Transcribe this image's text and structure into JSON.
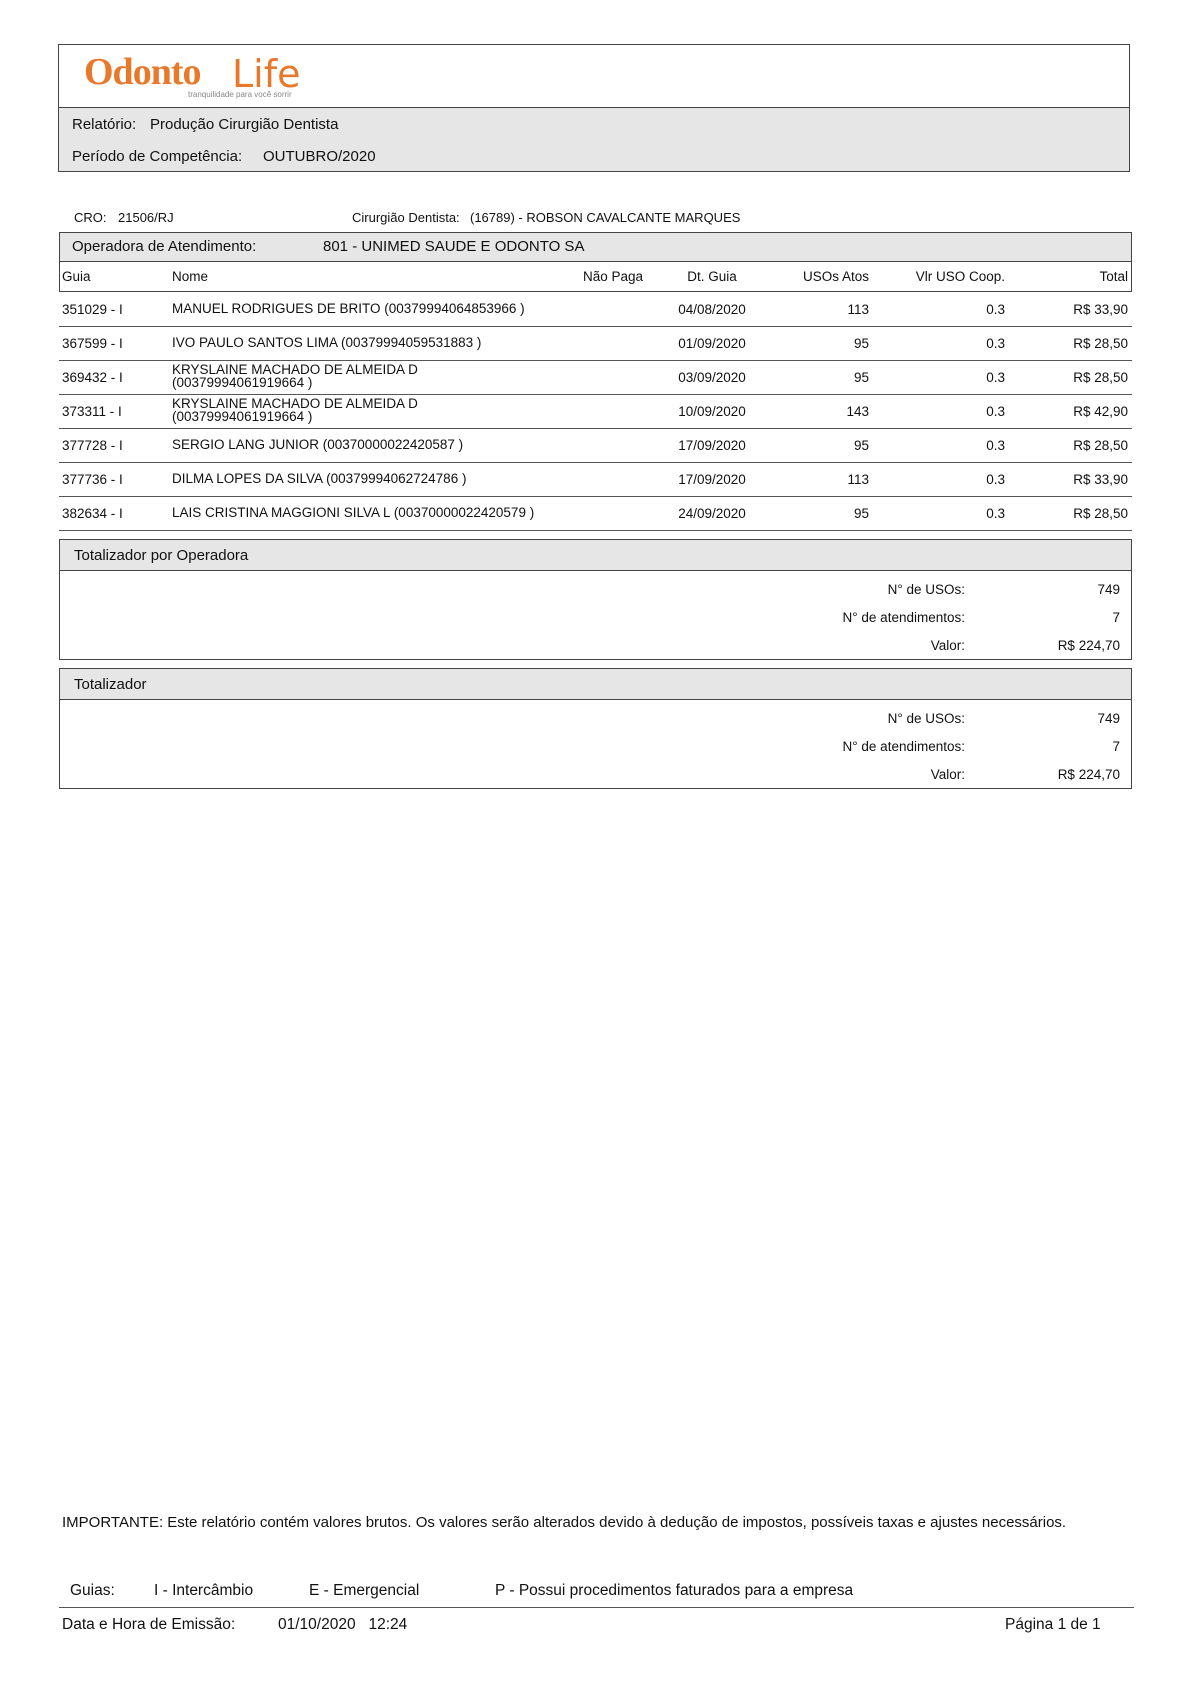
{
  "logo": {
    "brand_a": "Odonto",
    "brand_b": "Life",
    "tagline": "tranquilidade para você sorrir"
  },
  "header": {
    "report_label": "Relatório:",
    "report": "Produção Cirurgião Dentista",
    "period_label": "Período de Competência:",
    "period": "OUTUBRO/2020"
  },
  "info": {
    "cro_label": "CRO:",
    "cro": "21506/RJ",
    "dentist_label": "Cirurgião Dentista:",
    "dentist": "(16789) - ROBSON CAVALCANTE MARQUES"
  },
  "operator": {
    "label": "Operadora de Atendimento:",
    "name": "801 - UNIMED SAUDE E ODONTO SA"
  },
  "table": {
    "columns": [
      "Guia",
      "Nome",
      "Não Paga",
      "Dt. Guia",
      "USOs Atos",
      "Vlr USO Coop.",
      "Total"
    ],
    "rows": [
      [
        "351029 - I",
        [
          "MANUEL RODRIGUES DE BRITO (00379994064853966 )"
        ],
        "",
        "04/08/2020",
        113,
        0.3,
        "R$ 33,90"
      ],
      [
        "367599 - I",
        [
          "IVO PAULO SANTOS LIMA (00379994059531883 )"
        ],
        "",
        "01/09/2020",
        95,
        0.3,
        "R$ 28,50"
      ],
      [
        "369432 - I",
        [
          "KRYSLAINE MACHADO DE ALMEIDA D",
          "(00379994061919664 )"
        ],
        "",
        "03/09/2020",
        95,
        0.3,
        "R$ 28,50"
      ],
      [
        "373311 - I",
        [
          "KRYSLAINE MACHADO DE ALMEIDA D",
          "(00379994061919664 )"
        ],
        "",
        "10/09/2020",
        143,
        0.3,
        "R$ 42,90"
      ],
      [
        "377728 - I",
        [
          "SERGIO LANG JUNIOR (00370000022420587 )"
        ],
        "",
        "17/09/2020",
        95,
        0.3,
        "R$ 28,50"
      ],
      [
        "377736 - I",
        [
          "DILMA LOPES DA SILVA (00379994062724786 )"
        ],
        "",
        "17/09/2020",
        113,
        0.3,
        "R$ 33,90"
      ],
      [
        "382634 - I",
        [
          "LAIS CRISTINA MAGGIONI SILVA L (00370000022420579 )"
        ],
        "",
        "24/09/2020",
        95,
        0.3,
        "R$ 28,50"
      ]
    ]
  },
  "totals": [
    {
      "title": "Totalizador por Operadora",
      "items": [
        [
          "N° de USOs:",
          749
        ],
        [
          "N° de atendimentos:",
          7
        ],
        [
          "Valor:",
          "R$ 224,70"
        ]
      ]
    },
    {
      "title": "Totalizador",
      "items": [
        [
          "N° de USOs:",
          749
        ],
        [
          "N° de atendimentos:",
          7
        ],
        [
          "Valor:",
          "R$ 224,70"
        ]
      ]
    }
  ],
  "footer": {
    "notice": "IMPORTANTE: Este relatório contém valores brutos. Os valores serão alterados devido à dedução de impostos, possíveis taxas e ajustes necessários.",
    "legend_label": "Guias:",
    "legend": [
      "I - Intercâmbio",
      "E - Emergencial",
      "P - Possui procedimentos faturados para a empresa"
    ],
    "issued_label": "Data e Hora de Emissão:",
    "issued": "01/10/2020   12:24",
    "page": "Página 1 de 1"
  }
}
